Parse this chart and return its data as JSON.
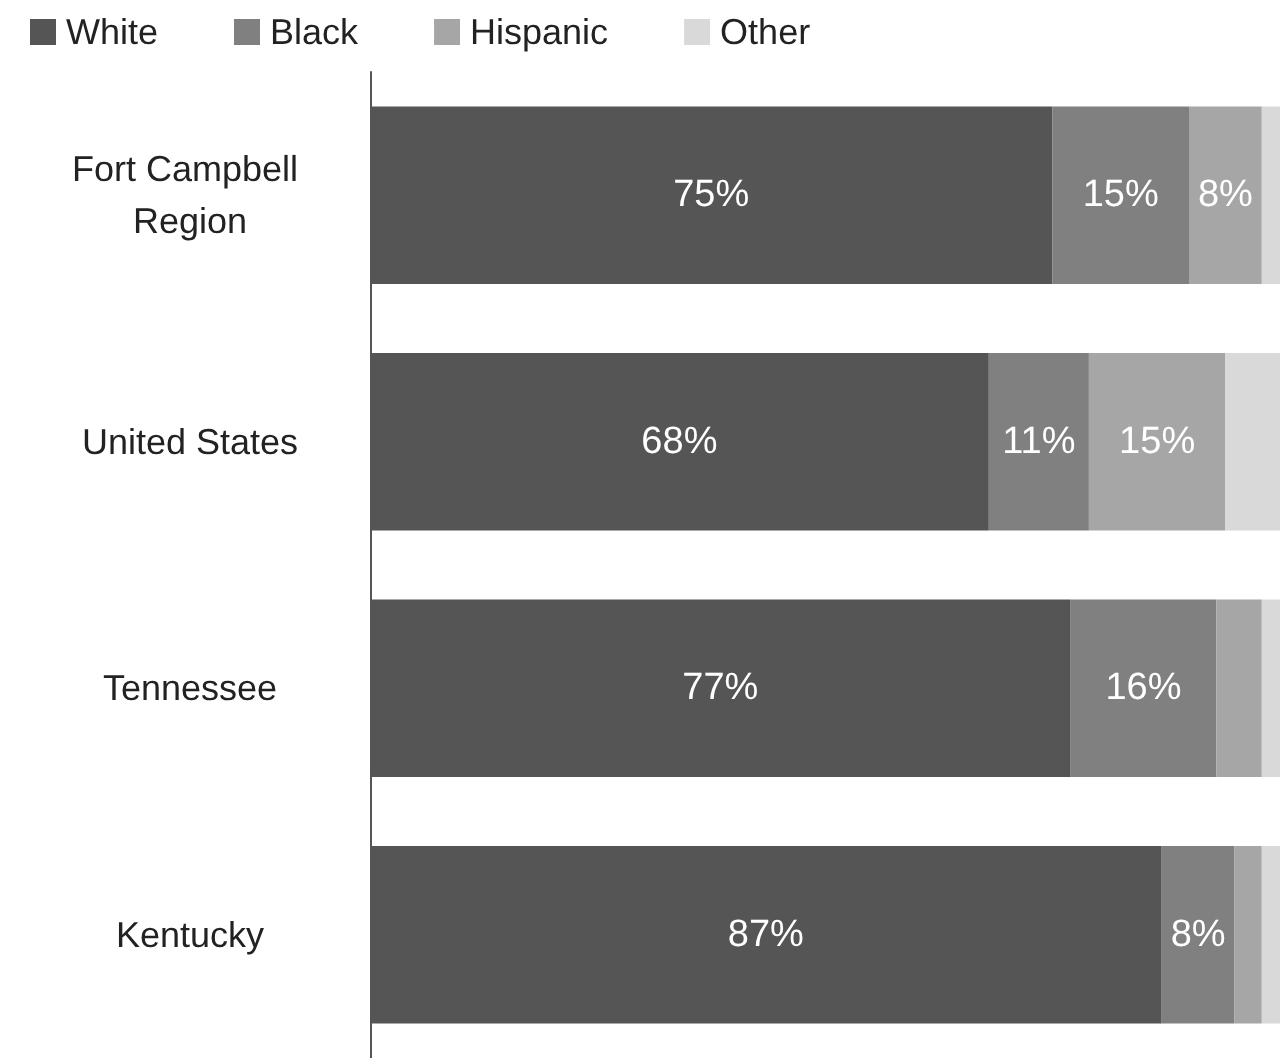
{
  "chart_data": {
    "type": "bar",
    "orientation": "horizontal",
    "stacked": true,
    "legend": "top",
    "categories": [
      "Fort Campbell Region",
      "United States",
      "Tennessee",
      "Kentucky"
    ],
    "series": [
      {
        "name": "White",
        "color": "#555555",
        "values": [
          75,
          68,
          77,
          87
        ],
        "value_labels": [
          "75%",
          "68%",
          "77%",
          "87%"
        ]
      },
      {
        "name": "Black",
        "color": "#808080",
        "values": [
          15,
          11,
          16,
          8
        ],
        "value_labels": [
          "15%",
          "11%",
          "16%",
          "8%"
        ]
      },
      {
        "name": "Hispanic",
        "color": "#a6a6a6",
        "values": [
          8,
          15,
          5,
          3
        ],
        "value_labels": [
          "8%",
          "15%",
          null,
          null
        ]
      },
      {
        "name": "Other",
        "color": "#d9d9d9",
        "values": [
          2,
          6,
          2,
          2
        ]
      }
    ]
  }
}
